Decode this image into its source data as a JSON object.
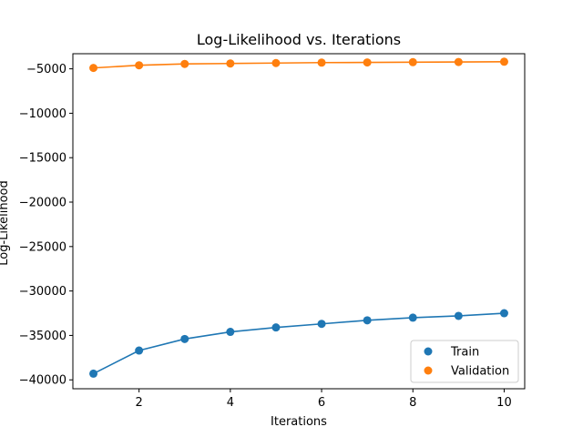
{
  "chart_data": {
    "type": "line",
    "title": "Log-Likelihood vs. Iterations",
    "xlabel": "Iterations",
    "ylabel": "Log-Likelihood",
    "x": [
      1,
      2,
      3,
      4,
      5,
      6,
      7,
      8,
      9,
      10
    ],
    "xlim": [
      0.55,
      10.45
    ],
    "ylim": [
      -41000,
      -3300
    ],
    "xticks": [
      2,
      4,
      6,
      8,
      10
    ],
    "yticks": [
      -40000,
      -35000,
      -30000,
      -25000,
      -20000,
      -15000,
      -10000,
      -5000
    ],
    "xtick_labels": [
      "2",
      "4",
      "6",
      "8",
      "10"
    ],
    "ytick_labels": [
      "−40000",
      "−35000",
      "−30000",
      "−25000",
      "−20000",
      "−15000",
      "−10000",
      "−5000"
    ],
    "grid": false,
    "legend_position": "lower-right",
    "series": [
      {
        "name": "Train",
        "color": "#1f77b4",
        "values": [
          -39300,
          -36700,
          -35400,
          -34600,
          -34100,
          -33700,
          -33300,
          -33000,
          -32800,
          -32500
        ]
      },
      {
        "name": "Validation",
        "color": "#ff7f0e",
        "values": [
          -4900,
          -4600,
          -4450,
          -4400,
          -4350,
          -4300,
          -4280,
          -4250,
          -4230,
          -4200
        ]
      }
    ]
  }
}
